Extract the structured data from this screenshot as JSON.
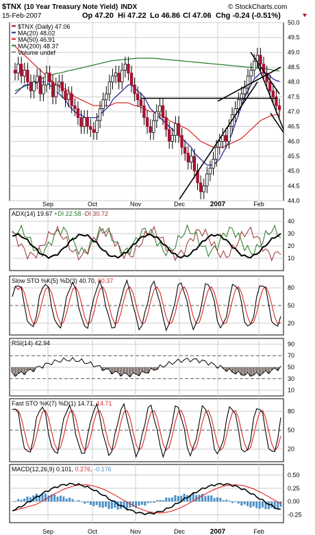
{
  "header": {
    "symbol": "$TNX",
    "name": "(10 Year Treasury Note Yield)",
    "exchange": "INDX",
    "date": "15-Feb-2007",
    "op": "Op 47.20",
    "hi": "Hi 47.22",
    "lo": "Lo 46.86",
    "cl": "Cl 47.06",
    "chg": "Chg -0.24 (-0.51%)",
    "source": "© StockCharts.com"
  },
  "colors": {
    "price": "#aa1133",
    "ma20": "#1a1a99",
    "ma50": "#dd2222",
    "ma200": "#227722",
    "trendline": "#000000",
    "plusdi": "#227722",
    "minusdi": "#993333",
    "adx": "#000000",
    "stoD": "#dd2222",
    "histogram": "#4a90c8",
    "grid": "#cccccc"
  },
  "legend": {
    "daily": "$TNX (Daily) 47.06",
    "ma20": "MA(20) 48.02",
    "ma50": "MA(50) 46.91",
    "ma200": "MA(200) 48.37",
    "volume": "Volume undef"
  },
  "x_axis_labels": [
    "Sep",
    "Oct",
    "Nov",
    "Dec",
    "2007",
    "Feb"
  ],
  "panels": {
    "adx": {
      "label": "ADX(14) 19.67",
      "plus": "+DI 22.58",
      "minus": "-DI 30.72"
    },
    "slow_sto": {
      "label": "Slow STO %K(5) %D(3) 40.70,",
      "d": "60.37"
    },
    "rsi": {
      "label": "RSI(14) 42.94"
    },
    "fast_sto": {
      "label": "Fast STO %K(7) %D(1) 14.71,",
      "d": "14.71"
    },
    "macd": {
      "label": "MACD(12,26,9) 0.101,",
      "sig": "0.276,",
      "hist": "-0.176"
    }
  },
  "chart_data": [
    {
      "type": "line",
      "title": "$TNX (10 Year Treasury Note Yield) INDX",
      "ylim": [
        44.0,
        50.0
      ],
      "yticks": [
        44.0,
        44.5,
        45.0,
        45.5,
        46.0,
        46.5,
        47.0,
        47.5,
        48.0,
        48.5,
        49.0,
        49.5,
        50.0
      ],
      "x_start": "2006-08-17",
      "x_end": "2007-02-15",
      "series": [
        {
          "name": "$TNX (Daily)",
          "values": [
            48.3,
            48.6,
            48.2,
            48.4,
            48.0,
            47.7,
            48.0,
            48.2,
            47.6,
            47.9,
            48.3,
            48.0,
            47.5,
            47.9,
            48.0,
            47.7,
            47.4,
            47.6,
            47.2,
            47.1,
            46.8,
            46.5,
            46.8,
            46.5,
            46.4,
            46.3,
            46.7,
            47.1,
            47.4,
            47.6,
            48.0,
            48.2,
            48.3,
            48.0,
            48.4,
            48.6,
            48.3,
            47.9,
            47.6,
            47.4,
            47.2,
            46.8,
            46.5,
            46.3,
            46.7,
            47.0,
            47.2,
            46.8,
            46.4,
            46.0,
            46.2,
            46.6,
            46.2,
            45.8,
            45.6,
            45.3,
            45.5,
            45.0,
            44.6,
            44.3,
            44.5,
            44.9,
            45.1,
            45.4,
            45.8,
            46.0,
            46.2,
            46.0,
            46.5,
            46.9,
            47.1,
            47.4,
            47.6,
            47.8,
            48.2,
            48.4,
            48.7,
            48.9,
            48.6,
            48.3,
            48.0,
            47.7,
            47.5,
            47.2,
            47.06
          ]
        },
        {
          "name": "MA(20)",
          "values": [
            47.6,
            47.7,
            47.8,
            47.9,
            47.9,
            47.9,
            47.9,
            48.0,
            48.0,
            48.0,
            48.0,
            47.9,
            47.8,
            47.7,
            47.6,
            47.5,
            47.4,
            47.2,
            47.1,
            47.0,
            46.9,
            46.9,
            46.8,
            46.8,
            46.8,
            46.8,
            46.8,
            46.9,
            47.0,
            47.1,
            47.2,
            47.4,
            47.5,
            47.6,
            47.7,
            47.8,
            47.9,
            47.9,
            47.8,
            47.7,
            47.6,
            47.5,
            47.3,
            47.1,
            47.0,
            46.9,
            46.8,
            46.7,
            46.6,
            46.5,
            46.4,
            46.3,
            46.2,
            46.1,
            46.0,
            45.9,
            45.8,
            45.6,
            45.5,
            45.4,
            45.3,
            45.2,
            45.2,
            45.2,
            45.3,
            45.4,
            45.6,
            45.8,
            46.0,
            46.3,
            46.6,
            46.9,
            47.2,
            47.5,
            47.7,
            47.9,
            48.1,
            48.2,
            48.3,
            48.3,
            48.3,
            48.2,
            48.1,
            48.05,
            48.02
          ]
        },
        {
          "name": "MA(50)",
          "values": [
            49.2,
            49.1,
            49.0,
            48.9,
            48.8,
            48.7,
            48.6,
            48.5,
            48.4,
            48.3,
            48.2,
            48.1,
            48.0,
            47.9,
            47.85,
            47.8,
            47.75,
            47.7,
            47.6,
            47.5,
            47.45,
            47.4,
            47.35,
            47.3,
            47.25,
            47.2,
            47.2,
            47.2,
            47.2,
            47.2,
            47.2,
            47.25,
            47.3,
            47.3,
            47.3,
            47.3,
            47.3,
            47.25,
            47.2,
            47.2,
            47.15,
            47.1,
            47.05,
            47.0,
            47.0,
            46.95,
            46.9,
            46.85,
            46.8,
            46.7,
            46.65,
            46.6,
            46.55,
            46.5,
            46.45,
            46.4,
            46.3,
            46.2,
            46.1,
            46.0,
            45.95,
            45.9,
            45.85,
            45.8,
            45.8,
            45.8,
            45.8,
            45.85,
            45.9,
            45.95,
            46.0,
            46.05,
            46.1,
            46.2,
            46.3,
            46.4,
            46.5,
            46.6,
            46.7,
            46.75,
            46.8,
            46.85,
            46.88,
            46.9,
            46.91
          ]
        },
        {
          "name": "MA(200)",
          "values": [
            47.7,
            47.75,
            47.8,
            47.85,
            47.9,
            47.95,
            48.0,
            48.05,
            48.1,
            48.15,
            48.2,
            48.22,
            48.25,
            48.28,
            48.3,
            48.32,
            48.35,
            48.38,
            48.4,
            48.42,
            48.45,
            48.47,
            48.5,
            48.52,
            48.55,
            48.57,
            48.6,
            48.62,
            48.65,
            48.67,
            48.7,
            48.72,
            48.73,
            48.74,
            48.75,
            48.76,
            48.77,
            48.78,
            48.79,
            48.8,
            48.8,
            48.8,
            48.8,
            48.8,
            48.8,
            48.79,
            48.78,
            48.77,
            48.76,
            48.75,
            48.74,
            48.73,
            48.72,
            48.71,
            48.7,
            48.69,
            48.68,
            48.67,
            48.66,
            48.65,
            48.64,
            48.63,
            48.62,
            48.61,
            48.6,
            48.59,
            48.58,
            48.57,
            48.56,
            48.55,
            48.54,
            48.53,
            48.52,
            48.51,
            48.5,
            48.49,
            48.48,
            48.47,
            48.46,
            48.45,
            48.44,
            48.42,
            48.4,
            48.38,
            48.37
          ]
        }
      ]
    },
    {
      "type": "line",
      "title": "ADX(14)",
      "ylim": [
        0,
        50
      ],
      "yticks": [
        10,
        20,
        30,
        40
      ]
    },
    {
      "type": "line",
      "title": "Slow STO",
      "ylim": [
        0,
        100
      ],
      "yticks": [
        20,
        50,
        80
      ]
    },
    {
      "type": "line",
      "title": "RSI(14)",
      "ylim": [
        0,
        100
      ],
      "yticks": [
        10,
        30,
        50,
        70,
        90
      ]
    },
    {
      "type": "line",
      "title": "Fast STO",
      "ylim": [
        0,
        100
      ],
      "yticks": [
        20,
        50,
        80
      ]
    },
    {
      "type": "line",
      "title": "MACD(12,26,9)",
      "ylim": [
        -0.4,
        0.7
      ],
      "yticks": [
        -0.25,
        0.0,
        0.25,
        0.5
      ]
    }
  ]
}
